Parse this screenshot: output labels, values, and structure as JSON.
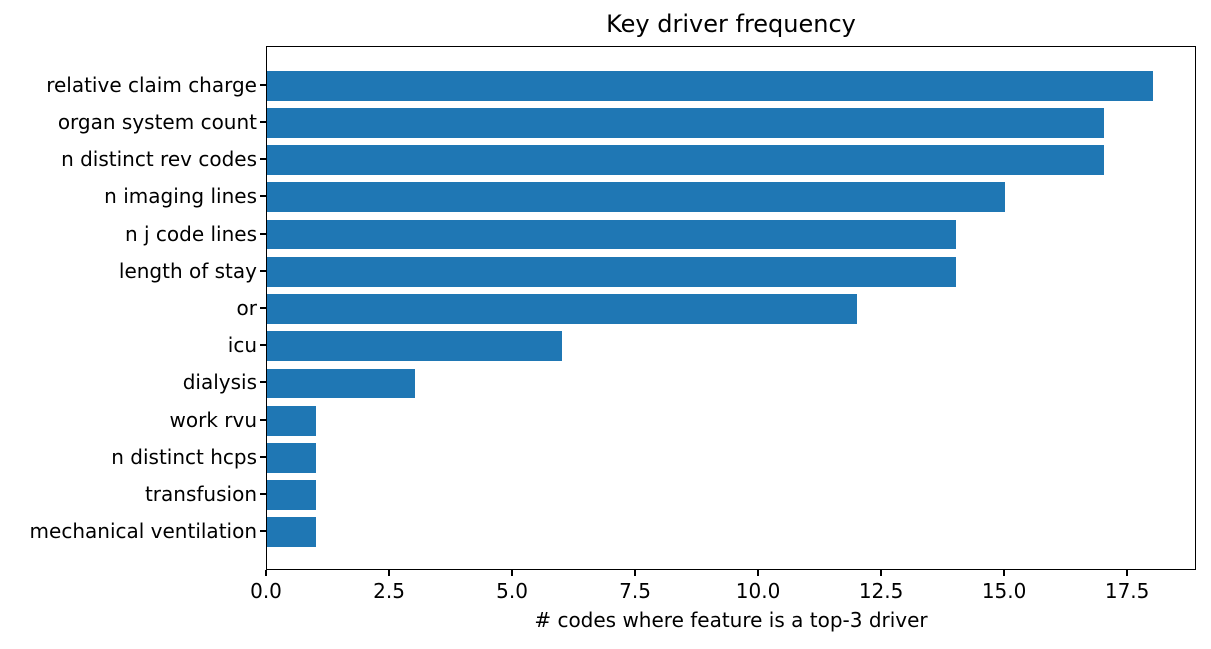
{
  "chart_data": {
    "type": "bar",
    "orientation": "horizontal",
    "title": "Key driver frequency",
    "xlabel": "# codes where feature is a top-3 driver",
    "ylabel": "",
    "categories": [
      "relative claim charge",
      "organ system count",
      "n distinct rev codes",
      "n imaging lines",
      "n j code lines",
      "length of stay",
      "or",
      "icu",
      "dialysis",
      "work rvu",
      "n distinct hcps",
      "transfusion",
      "mechanical ventilation"
    ],
    "values": [
      18,
      17,
      17,
      15,
      14,
      14,
      12,
      6,
      3,
      1,
      1,
      1,
      1
    ],
    "xlim": [
      0,
      18.9
    ],
    "x_ticks": [
      0.0,
      2.5,
      5.0,
      7.5,
      10.0,
      12.5,
      15.0,
      17.5
    ],
    "x_tick_labels": [
      "0.0",
      "2.5",
      "5.0",
      "7.5",
      "10.0",
      "12.5",
      "15.0",
      "17.5"
    ],
    "bar_color": "#1f77b4",
    "axis_color": "#000000",
    "background_color": "#ffffff",
    "grid": false,
    "legend": null
  }
}
